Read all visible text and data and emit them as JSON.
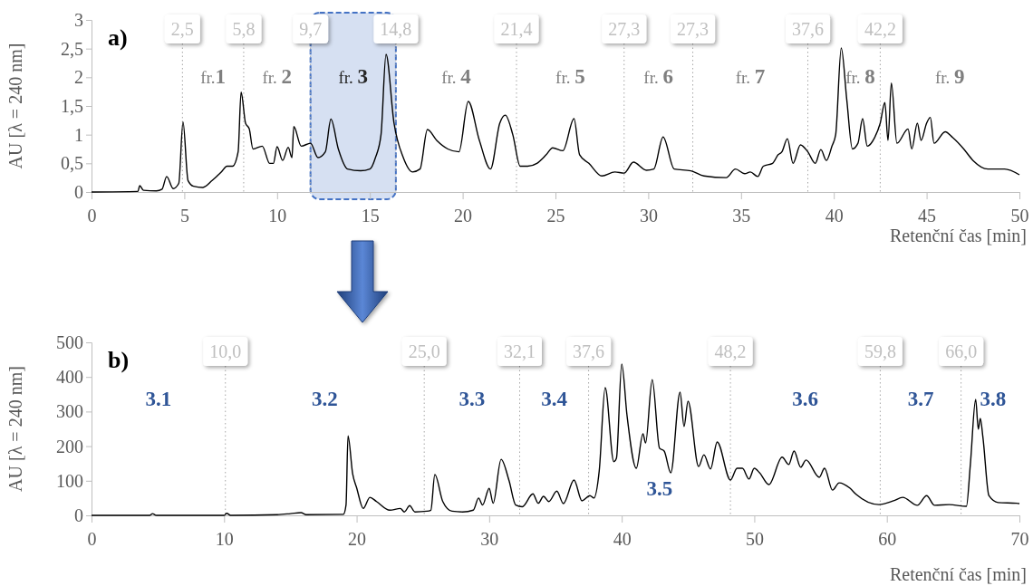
{
  "chart_data": [
    {
      "type": "line",
      "title": "a)",
      "xlabel": "Retenční čas [min]",
      "ylabel": "AU [λ = 240 nm]",
      "xlim": [
        0,
        50
      ],
      "xticks": [
        0,
        5,
        10,
        15,
        20,
        25,
        30,
        35,
        40,
        45,
        50
      ],
      "ylim": [
        0,
        3
      ],
      "yticks": [
        0,
        {
          "value": 0.5,
          "label": "0,5"
        },
        1,
        {
          "value": 1.5,
          "label": "1,5"
        },
        2,
        {
          "value": 2.5,
          "label": "2,5"
        },
        3
      ],
      "grid": false,
      "marker": "none",
      "line_style": "solid",
      "series": [
        {
          "color": "#000000",
          "x": [
            0,
            2.5,
            2.6,
            2.8,
            3.5,
            3.8,
            4.05,
            4.4,
            4.7,
            4.93,
            5.2,
            5.5,
            6.0,
            6.5,
            7.0,
            7.3,
            7.6,
            7.9,
            8.06,
            8.3,
            8.5,
            8.7,
            9.2,
            9.6,
            9.8,
            10.0,
            10.3,
            10.6,
            10.8,
            10.9,
            11.3,
            11.8,
            12.2,
            12.6,
            12.9,
            13.3,
            13.8,
            14.5,
            15.0,
            15.3,
            15.6,
            15.87,
            16.3,
            16.8,
            17.3,
            17.7,
            18.1,
            18.6,
            19.2,
            19.8,
            20.3,
            20.9,
            21.5,
            22.0,
            22.3,
            22.7,
            23.1,
            23.5,
            24.0,
            24.5,
            24.85,
            25.4,
            26.0,
            26.3,
            26.8,
            27.5,
            28.2,
            28.7,
            29.2,
            29.9,
            30.3,
            30.8,
            31.4,
            32.3,
            33.0,
            34.2,
            34.7,
            35.2,
            35.5,
            35.9,
            36.2,
            36.7,
            37.0,
            37.2,
            37.5,
            37.8,
            38.2,
            38.6,
            39.0,
            39.3,
            39.6,
            39.9,
            40.1,
            40.4,
            40.7,
            41.0,
            41.3,
            41.55,
            41.8,
            42.2,
            42.5,
            42.75,
            42.92,
            43.1,
            43.4,
            44.0,
            44.2,
            44.5,
            44.7,
            45.0,
            45.2,
            45.4,
            46.0,
            46.4,
            47.0,
            47.5,
            48.3,
            49.2,
            50
          ],
          "values": [
            0,
            0.01,
            0.11,
            0.03,
            0.02,
            0.05,
            0.27,
            0.06,
            0.15,
            1.22,
            0.2,
            0.1,
            0.08,
            0.2,
            0.35,
            0.45,
            0.45,
            0.7,
            1.74,
            1.2,
            1.1,
            0.75,
            0.8,
            0.5,
            0.5,
            0.79,
            0.55,
            0.78,
            0.6,
            1.14,
            0.8,
            0.85,
            0.6,
            0.7,
            1.27,
            0.75,
            0.4,
            0.37,
            0.4,
            0.6,
            1.0,
            2.4,
            1.2,
            0.6,
            0.35,
            0.4,
            1.09,
            0.9,
            0.75,
            0.7,
            1.58,
            0.9,
            0.4,
            1.2,
            1.34,
            1.0,
            0.45,
            0.45,
            0.5,
            0.65,
            0.77,
            0.72,
            1.28,
            0.65,
            0.5,
            0.28,
            0.35,
            0.33,
            0.52,
            0.38,
            0.4,
            0.96,
            0.4,
            0.37,
            0.28,
            0.25,
            0.4,
            0.32,
            0.35,
            0.27,
            0.45,
            0.5,
            0.65,
            0.7,
            0.93,
            0.5,
            0.82,
            0.7,
            0.5,
            0.74,
            0.55,
            0.8,
            1.0,
            2.51,
            1.6,
            0.75,
            0.85,
            1.28,
            0.8,
            0.95,
            1.2,
            1.56,
            0.9,
            1.9,
            0.85,
            1.1,
            0.75,
            1.2,
            0.9,
            1.2,
            1.3,
            0.85,
            1.05,
            0.95,
            0.75,
            0.55,
            0.4,
            0.4,
            0.3
          ]
        }
      ],
      "ref_lines": [
        {
          "axis": "x",
          "value": 4.9,
          "color": "#a6a6a6",
          "line_style": "dotted"
        },
        {
          "axis": "x",
          "value": 8.2,
          "color": "#a6a6a6",
          "line_style": "dotted"
        },
        {
          "axis": "x",
          "value": 11.8,
          "color": "#a6a6a6",
          "line_style": "dotted"
        },
        {
          "axis": "x",
          "value": 16.4,
          "color": "#a6a6a6",
          "line_style": "dotted"
        },
        {
          "axis": "x",
          "value": 22.9,
          "color": "#a6a6a6",
          "line_style": "dotted"
        },
        {
          "axis": "x",
          "value": 28.7,
          "color": "#a6a6a6",
          "line_style": "dotted"
        },
        {
          "axis": "x",
          "value": 32.4,
          "color": "#a6a6a6",
          "line_style": "dotted"
        },
        {
          "axis": "x",
          "value": 38.6,
          "color": "#a6a6a6",
          "line_style": "dotted"
        },
        {
          "axis": "x",
          "value": 42.5,
          "color": "#a6a6a6",
          "line_style": "dotted"
        }
      ],
      "bands": [
        {
          "axis": "x",
          "from": 11.8,
          "to": 16.4,
          "color": "#4472c4"
        }
      ],
      "annotations": [
        "fr.1",
        "fr. 2",
        "fr. 3",
        "fr. 4",
        "fr. 5",
        "fr. 6",
        "fr. 7",
        "fr. 8",
        "fr. 9",
        "2,5",
        "5,8",
        "9,7",
        "14,8",
        "21,4",
        "27,3",
        "27,3",
        "37,6",
        "42,2"
      ]
    },
    {
      "type": "line",
      "title": "b)",
      "xlabel": "Retenční čas [min]",
      "ylabel": "AU [λ = 240 nm]",
      "xlim": [
        0,
        70
      ],
      "xticks": [
        0,
        10,
        20,
        30,
        40,
        50,
        60,
        70
      ],
      "ylim": [
        0,
        500
      ],
      "yticks": [
        0,
        100,
        200,
        300,
        400,
        500
      ],
      "grid": false,
      "marker": "none",
      "line_style": "solid",
      "series": [
        {
          "color": "#000000",
          "x": [
            0,
            4.4,
            4.6,
            4.9,
            10.0,
            10.2,
            10.5,
            14.0,
            15.0,
            15.8,
            16.2,
            19.0,
            19.2,
            19.35,
            19.7,
            20.0,
            20.5,
            21.0,
            21.5,
            22.5,
            23.3,
            23.6,
            24.0,
            24.4,
            25.3,
            25.6,
            25.9,
            26.5,
            27.2,
            28.0,
            28.8,
            29.2,
            29.5,
            30.0,
            30.3,
            30.9,
            31.5,
            32.0,
            32.5,
            33.3,
            33.7,
            34.1,
            34.5,
            35.1,
            35.6,
            36.4,
            37.0,
            37.6,
            37.9,
            38.3,
            38.75,
            39.4,
            39.6,
            40.0,
            40.4,
            41.1,
            41.6,
            41.8,
            42.3,
            42.85,
            43.2,
            43.7,
            44.4,
            44.7,
            45.0,
            45.8,
            46.2,
            46.7,
            47.2,
            48.2,
            48.7,
            49.1,
            49.6,
            50.0,
            50.4,
            51.1,
            52.1,
            52.6,
            53.0,
            53.5,
            53.9,
            54.9,
            55.3,
            55.9,
            56.4,
            57.2,
            57.7,
            59.4,
            60.5,
            61.2,
            62.3,
            63.0,
            63.6,
            64.7,
            66.0,
            66.3,
            66.7,
            66.9,
            67.05,
            67.25,
            67.7,
            68.4,
            69.8,
            70
          ],
          "values": [
            0,
            0,
            5,
            0,
            0,
            6,
            0,
            2,
            5,
            8,
            2,
            3,
            30,
            230,
            120,
            80,
            20,
            52,
            40,
            15,
            20,
            10,
            28,
            10,
            12,
            15,
            118,
            40,
            12,
            10,
            15,
            50,
            30,
            78,
            35,
            162,
            100,
            30,
            25,
            62,
            35,
            55,
            40,
            70,
            34,
            102,
            42,
            57,
            50,
            128,
            369,
            155,
            165,
            437,
            288,
            136,
            236,
            209,
            392,
            194,
            186,
            123,
            356,
            257,
            330,
            141,
            175,
            134,
            212,
            102,
            136,
            136,
            105,
            136,
            123,
            89,
            168,
            147,
            186,
            139,
            160,
            110,
            136,
            73,
            94,
            79,
            60,
            31,
            42,
            52,
            29,
            57,
            29,
            31,
            26,
            147,
            335,
            249,
            280,
            225,
            57,
            37,
            35,
            34
          ]
        }
      ],
      "ref_lines": [
        {
          "axis": "x",
          "value": 10.1,
          "color": "#a6a6a6",
          "line_style": "dotted"
        },
        {
          "axis": "x",
          "value": 25.1,
          "color": "#a6a6a6",
          "line_style": "dotted"
        },
        {
          "axis": "x",
          "value": 32.3,
          "color": "#a6a6a6",
          "line_style": "dotted"
        },
        {
          "axis": "x",
          "value": 37.5,
          "color": "#a6a6a6",
          "line_style": "dotted"
        },
        {
          "axis": "x",
          "value": 48.2,
          "color": "#a6a6a6",
          "line_style": "dotted"
        },
        {
          "axis": "x",
          "value": 59.5,
          "color": "#a6a6a6",
          "line_style": "dotted"
        },
        {
          "axis": "x",
          "value": 65.6,
          "color": "#a6a6a6",
          "line_style": "dotted"
        }
      ],
      "annotations": [
        "3.1",
        "3.2",
        "3.3",
        "3.4",
        "3.5",
        "3.6",
        "3.7",
        "3.8",
        "10,0",
        "25,0",
        "32,1",
        "37,6",
        "48,2",
        "59,8",
        "66,0"
      ]
    }
  ]
}
